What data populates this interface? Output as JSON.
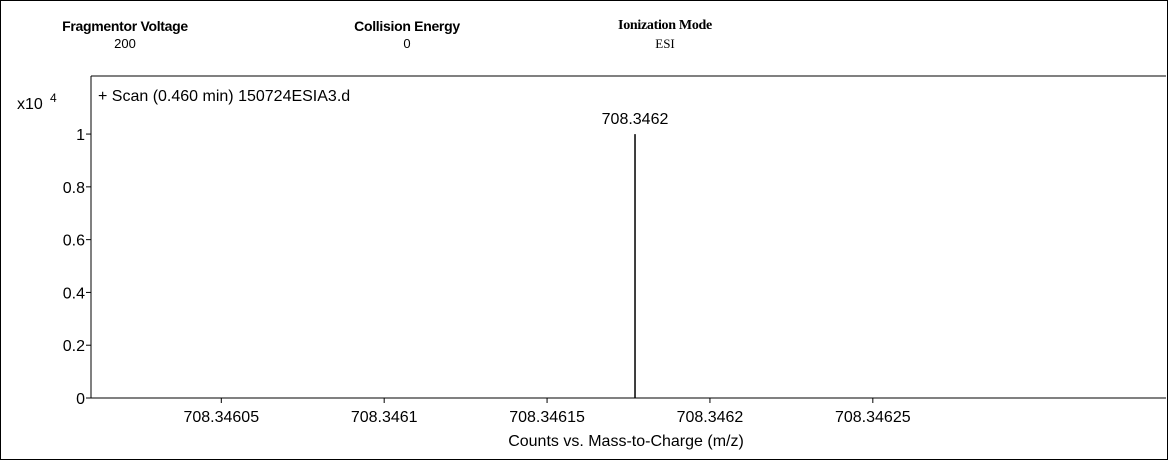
{
  "params": [
    {
      "label": "Fragmentor Voltage",
      "value": "200"
    },
    {
      "label": "Collision Energy",
      "value": "0"
    },
    {
      "label": "Ionization Mode",
      "value": "ESI"
    }
  ],
  "chart_data": {
    "type": "bar",
    "title": "+ Scan (0.460 min) 150724ESIA3.d",
    "xlabel": "Counts vs. Mass-to-Charge (m/z)",
    "ylabel": "",
    "y_multiplier": "x10",
    "y_exponent": "4",
    "xlim": [
      708.34601,
      708.34634
    ],
    "ylim": [
      0,
      1.22
    ],
    "x_ticks": [
      708.34605,
      708.3461,
      708.34615,
      708.3462,
      708.34625
    ],
    "x_tick_labels": [
      "708.34605",
      "708.3461",
      "708.34615",
      "708.3462",
      "708.34625"
    ],
    "y_ticks": [
      0,
      0.2,
      0.4,
      0.6,
      0.8,
      1
    ],
    "y_tick_labels": [
      "0",
      "0.2",
      "0.4",
      "0.6",
      "0.8",
      "1"
    ],
    "peaks": [
      {
        "x": 708.346177,
        "y": 1.0,
        "label": "708.3462"
      }
    ],
    "grid": false
  }
}
